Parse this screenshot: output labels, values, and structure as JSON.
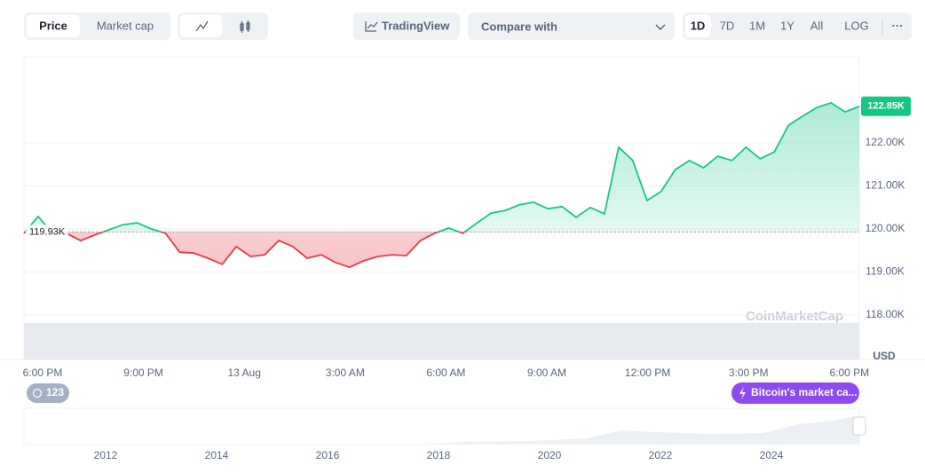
{
  "toolbar": {
    "price": "Price",
    "market_cap": "Market cap",
    "tradingview": "TradingView",
    "compare": "Compare with",
    "ranges": [
      "1D",
      "7D",
      "1M",
      "1Y",
      "All",
      "LOG"
    ]
  },
  "chart_data": {
    "type": "line",
    "values": [
      119900,
      120290,
      119900,
      119900,
      119730,
      119860,
      119980,
      120100,
      120140,
      120000,
      119900,
      119460,
      119440,
      119320,
      119180,
      119590,
      119360,
      119400,
      119730,
      119590,
      119320,
      119400,
      119220,
      119110,
      119260,
      119360,
      119400,
      119380,
      119730,
      119900,
      120020,
      119900,
      120140,
      120370,
      120430,
      120560,
      120620,
      120470,
      120520,
      120270,
      120500,
      120350,
      121900,
      121590,
      120660,
      120870,
      121380,
      121590,
      121420,
      121690,
      121590,
      121900,
      121630,
      121790,
      122410,
      122620,
      122820,
      122930,
      122720,
      122850
    ],
    "color_up": "#16c784",
    "color_down": "#ea3943",
    "reference": {
      "value": 119930,
      "label": "119.93K"
    },
    "current": {
      "value": 122850,
      "label": "122.85K"
    },
    "ylim": [
      117000,
      124000
    ],
    "yticks": [
      {
        "value": 118000,
        "label": "118.00K"
      },
      {
        "value": 119000,
        "label": "119.00K"
      },
      {
        "value": 120000,
        "label": "120.00K"
      },
      {
        "value": 121000,
        "label": "121.00K"
      },
      {
        "value": 122000,
        "label": "122.00K"
      }
    ],
    "xlabels": [
      "6:00 PM",
      "9:00 PM",
      "13 Aug",
      "3:00 AM",
      "6:00 AM",
      "9:00 AM",
      "12:00 PM",
      "3:00 PM",
      "6:00 PM"
    ],
    "unit": "USD",
    "watermark": "CoinMarketCap"
  },
  "badges": {
    "count": "123",
    "event": "Bitcoin's market ca..."
  },
  "navigator": {
    "years": [
      "2012",
      "2014",
      "2016",
      "2018",
      "2020",
      "2022",
      "2024"
    ]
  }
}
